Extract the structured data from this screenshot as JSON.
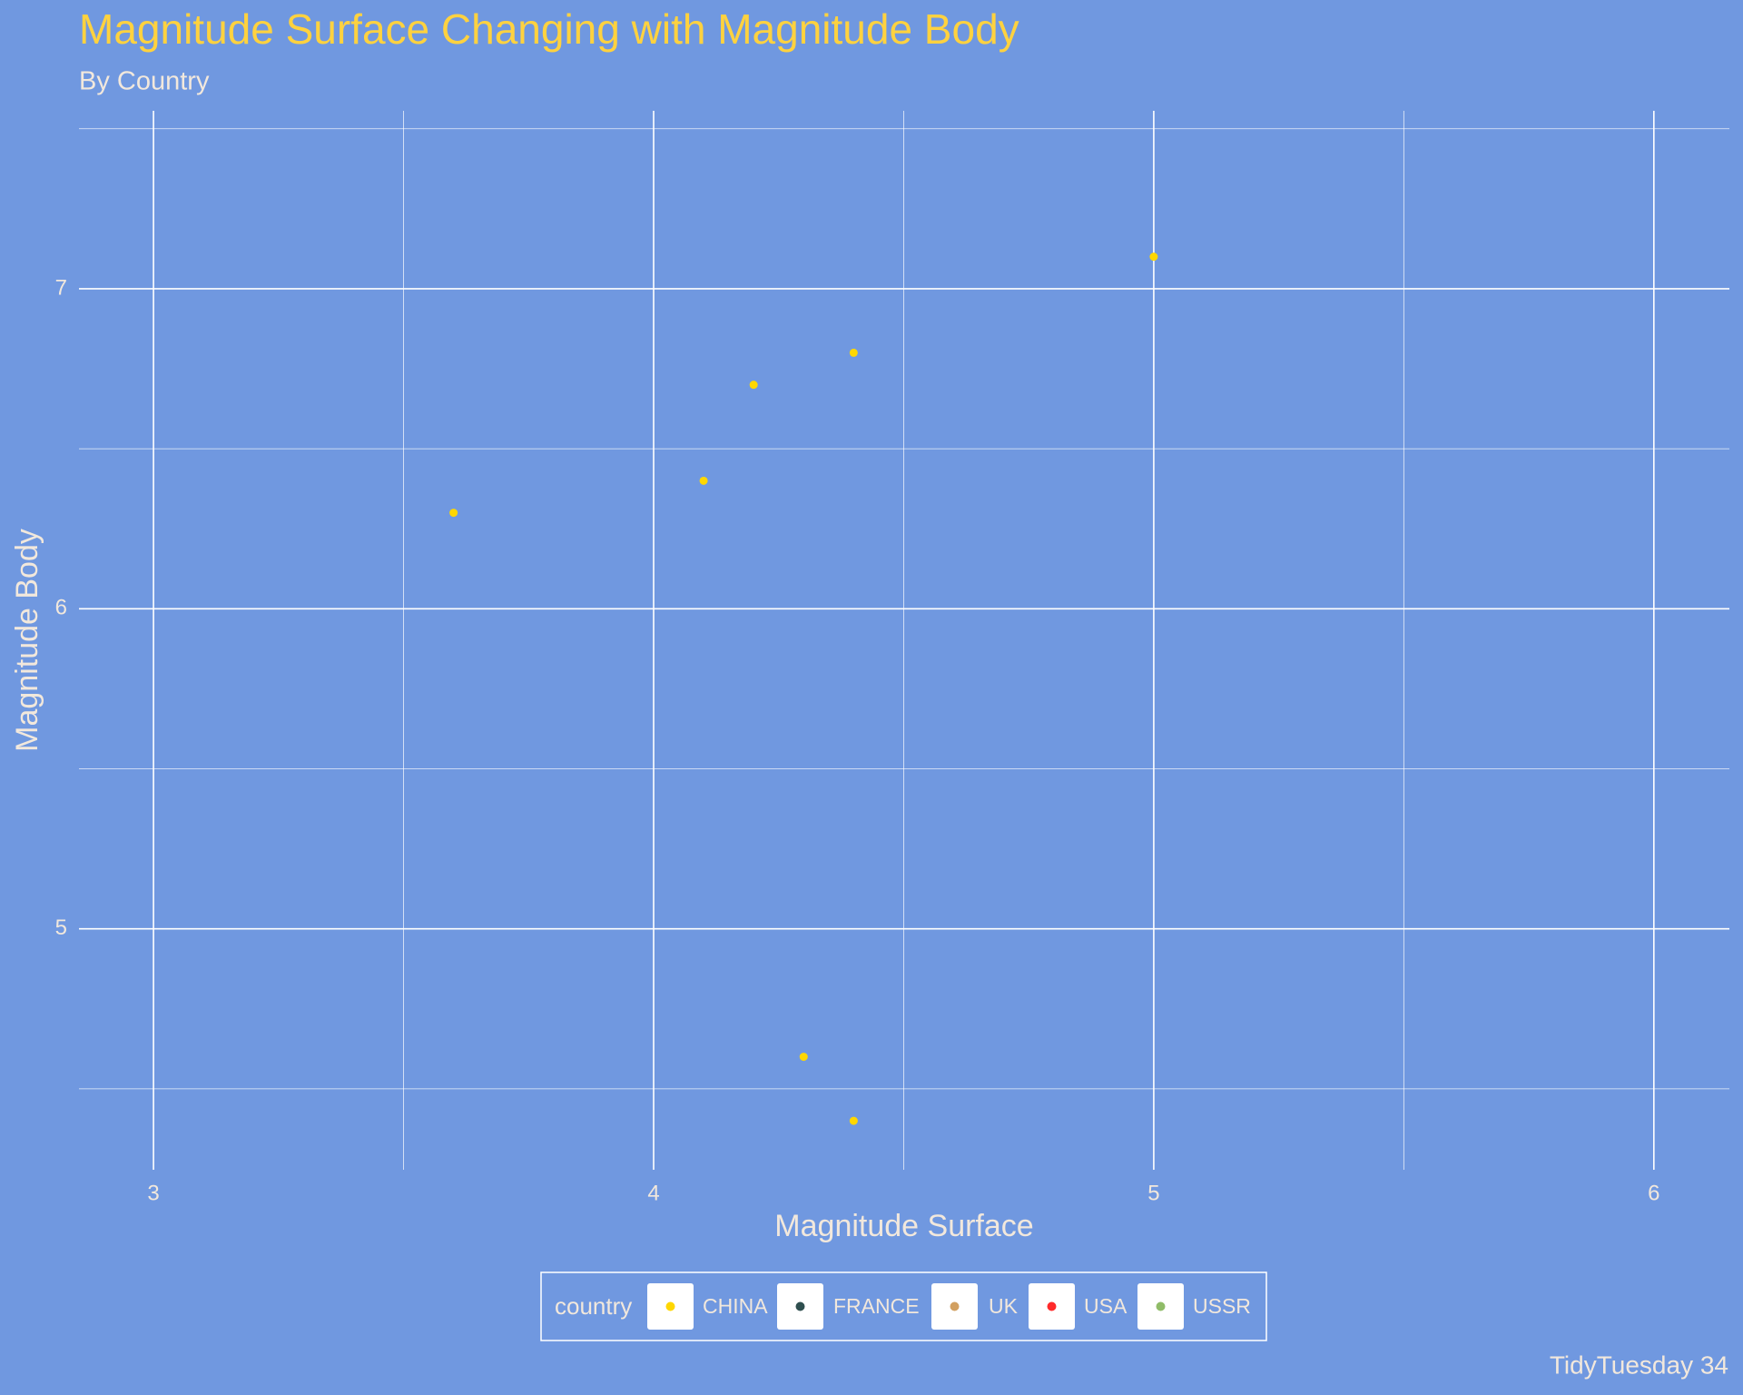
{
  "chart_data": {
    "type": "scatter",
    "title": "Magnitude Surface Changing with Magnitude Body",
    "subtitle": "By Country",
    "x_label": "Magnitude Surface",
    "y_label": "Magnitude Body",
    "caption": "TidyTuesday 34",
    "legend_title": "country",
    "legend_position": "bottom",
    "grid": true,
    "xlim": [
      2.851,
      6.151
    ],
    "ylim": [
      4.247,
      7.556
    ],
    "xticks": [
      3,
      4,
      5,
      6
    ],
    "yticks": [
      5,
      6,
      7
    ],
    "series": [
      {
        "name": "CHINA",
        "color": "#FFD700",
        "x": [
          3.6,
          4.1,
          4.2,
          4.4,
          5.0,
          4.3,
          4.4
        ],
        "values": [
          6.3,
          6.4,
          6.7,
          6.8,
          7.1,
          4.6,
          4.4
        ]
      },
      {
        "name": "FRANCE",
        "color": "#2F4F4F",
        "x": [],
        "values": []
      },
      {
        "name": "UK",
        "color": "#D2A060",
        "x": [],
        "values": []
      },
      {
        "name": "USA",
        "color": "#FF2A2A",
        "x": [],
        "values": []
      },
      {
        "name": "USSR",
        "color": "#90BC68",
        "x": [],
        "values": []
      }
    ]
  }
}
